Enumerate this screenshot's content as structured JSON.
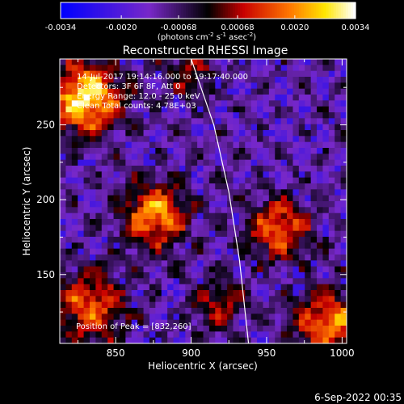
{
  "chart_data": {
    "type": "heatmap",
    "title": "Reconstructed RHESSI Image",
    "xlabel": "Heliocentric X (arcsec)",
    "ylabel": "Heliocentric Y (arcsec)",
    "xlim": [
      813,
      1003
    ],
    "ylim": [
      104,
      294
    ],
    "xticks": [
      850,
      900,
      950,
      1000
    ],
    "yticks": [
      150,
      200,
      250
    ],
    "colorbar": {
      "range": [
        -0.0034,
        0.0034
      ],
      "ticks": [
        "-0.0034",
        "-0.0020",
        "-0.00068",
        "0.00068",
        "0.0020",
        "0.0034"
      ],
      "unit_text": "(photons cm",
      "unit_exp1": "-2",
      "unit_text2": " s",
      "unit_exp2": "-1",
      "unit_text3": " asec",
      "unit_exp3": "-2",
      "unit_text4": ")"
    },
    "annotations": [
      "14-Jul-2017 19:14:16.000 to 19:17:40.000",
      "Detectors: 3F 6F 8F, Att 0",
      "Energy Range: 12.0 - 25.0 keV",
      "Clean     Total counts: 4.78E+03"
    ],
    "peak_label": "Position of Peak = [832,260]",
    "peak": [
      832,
      260
    ],
    "sources": [
      {
        "x": 830,
        "y": 268,
        "sigma": 16,
        "amp": 1.0
      },
      {
        "x": 876,
        "y": 190,
        "sigma": 15,
        "amp": 0.75
      },
      {
        "x": 958,
        "y": 180,
        "sigma": 14,
        "amp": 0.65
      },
      {
        "x": 832,
        "y": 128,
        "sigma": 17,
        "amp": 0.6
      },
      {
        "x": 992,
        "y": 118,
        "sigma": 16,
        "amp": 0.7
      },
      {
        "x": 918,
        "y": 130,
        "sigma": 12,
        "amp": 0.4
      },
      {
        "x": 900,
        "y": 285,
        "sigma": 12,
        "amp": 0.35
      }
    ],
    "limb_arc": [
      [
        900,
        294
      ],
      [
        915,
        250
      ],
      [
        925,
        205
      ],
      [
        932,
        160
      ],
      [
        938,
        104
      ]
    ]
  },
  "footer": {
    "date": "6-Sep-2022 00:35"
  }
}
